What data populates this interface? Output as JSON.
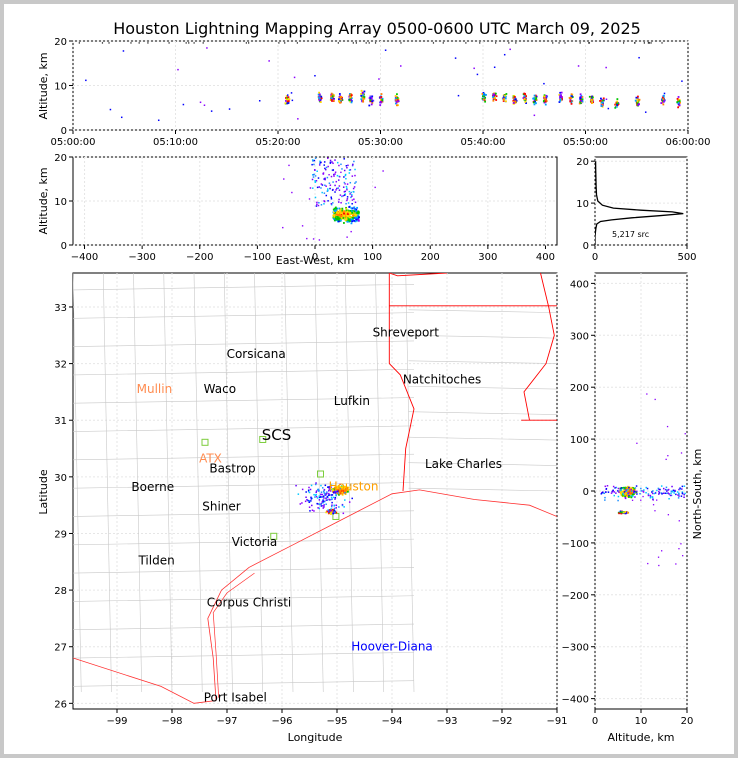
{
  "title": "Houston Lightning Mapping Array 0500-0600 UTC March 09, 2025",
  "colors": {
    "background": "#ffffff",
    "frame": "#c8c8c8",
    "borders": "#ff0000",
    "counties": "#b8b8b8",
    "grid": "#e6e6e6"
  },
  "source_count_label": "5,217 src",
  "chart_data": [
    {
      "id": "time-altitude",
      "type": "scatter",
      "xlabel": "",
      "ylabel": "Altitude, km",
      "xticks": [
        "05:00:00",
        "05:10:00",
        "05:20:00",
        "05:30:00",
        "05:40:00",
        "05:50:00",
        "06:00:00"
      ],
      "xlim_minutes": [
        0,
        60
      ],
      "ylim": [
        0,
        20
      ],
      "yticks": [
        0,
        10,
        20
      ],
      "clusters_minutes": [
        [
          20.8,
          7
        ],
        [
          24,
          7.5
        ],
        [
          25.2,
          7.5
        ],
        [
          26,
          7
        ],
        [
          27,
          7.5
        ],
        [
          28.2,
          7.5
        ],
        [
          29,
          7
        ],
        [
          30,
          7
        ],
        [
          31.5,
          7
        ],
        [
          40,
          7.5
        ],
        [
          41,
          8
        ],
        [
          42,
          7.5
        ],
        [
          43,
          7
        ],
        [
          44,
          7.5
        ],
        [
          45,
          7
        ],
        [
          46,
          7
        ],
        [
          47.5,
          7.5
        ],
        [
          48.5,
          7
        ],
        [
          49.5,
          7
        ],
        [
          50.5,
          7
        ],
        [
          51.5,
          6.5
        ],
        [
          53,
          6
        ],
        [
          55,
          6.5
        ],
        [
          57.5,
          7
        ],
        [
          59,
          6.5
        ]
      ]
    },
    {
      "id": "ew-altitude",
      "type": "scatter",
      "xlabel": "East-West, km",
      "ylabel": "Altitude, km",
      "xlim": [
        -420,
        420
      ],
      "ylim": [
        0,
        20
      ],
      "xticks": [
        -400,
        -300,
        -200,
        -100,
        0,
        100,
        200,
        300,
        400
      ],
      "yticks": [
        0,
        10,
        20
      ],
      "core_center_km": [
        55,
        7
      ]
    },
    {
      "id": "altitude-histogram",
      "type": "line",
      "xlim": [
        0,
        500
      ],
      "ylim": [
        0,
        21
      ],
      "xticks": [
        0,
        500
      ],
      "yticks": [
        0,
        10,
        20
      ],
      "profile": [
        [
          0,
          0
        ],
        [
          0,
          2
        ],
        [
          2,
          3
        ],
        [
          5,
          4
        ],
        [
          10,
          5
        ],
        [
          30,
          5.6
        ],
        [
          90,
          6
        ],
        [
          200,
          6.5
        ],
        [
          350,
          7
        ],
        [
          480,
          7.5
        ],
        [
          420,
          7.9
        ],
        [
          250,
          8.3
        ],
        [
          100,
          8.8
        ],
        [
          40,
          9.5
        ],
        [
          15,
          10.5
        ],
        [
          8,
          12
        ],
        [
          6,
          14
        ],
        [
          5,
          16
        ],
        [
          4,
          18
        ],
        [
          3,
          20
        ]
      ]
    },
    {
      "id": "plan-view",
      "type": "scatter",
      "xlabel": "Longitude",
      "ylabel": "Latitude",
      "xlim": [
        -99.8,
        -91
      ],
      "ylim": [
        25.9,
        33.6
      ],
      "xticks": [
        -99,
        -98,
        -97,
        -96,
        -95,
        -94,
        -93,
        -92,
        -91
      ],
      "yticks": [
        26,
        27,
        28,
        29,
        30,
        31,
        32,
        33
      ],
      "cities": [
        {
          "name": "Shreveport",
          "lon": -93.75,
          "lat": 32.55,
          "color": "#000000"
        },
        {
          "name": "Corsicana",
          "lon": -96.47,
          "lat": 32.17,
          "color": "#000000"
        },
        {
          "name": "Natchitoches",
          "lon": -93.09,
          "lat": 31.72,
          "color": "#000000"
        },
        {
          "name": "Mullin",
          "lon": -98.32,
          "lat": 31.55,
          "color": "#ff8c50"
        },
        {
          "name": "Waco",
          "lon": -97.13,
          "lat": 31.55,
          "color": "#000000"
        },
        {
          "name": "Lufkin",
          "lon": -94.73,
          "lat": 31.34,
          "color": "#000000"
        },
        {
          "name": "SCS",
          "lon": -96.1,
          "lat": 30.72,
          "color": "#000000"
        },
        {
          "name": "ATX",
          "lon": -97.3,
          "lat": 30.32,
          "color": "#ff8c50"
        },
        {
          "name": "Lake Charles",
          "lon": -92.7,
          "lat": 30.23,
          "color": "#000000"
        },
        {
          "name": "Bastrop",
          "lon": -96.9,
          "lat": 30.15,
          "color": "#000000"
        },
        {
          "name": "Boerne",
          "lon": -98.35,
          "lat": 29.82,
          "color": "#000000"
        },
        {
          "name": "Houston",
          "lon": -94.7,
          "lat": 29.83,
          "color": "#ffa000"
        },
        {
          "name": "Shiner",
          "lon": -97.1,
          "lat": 29.48,
          "color": "#000000"
        },
        {
          "name": "Victoria",
          "lon": -96.5,
          "lat": 28.85,
          "color": "#000000"
        },
        {
          "name": "Tilden",
          "lon": -98.28,
          "lat": 28.52,
          "color": "#000000"
        },
        {
          "name": "Corpus Christi",
          "lon": -96.6,
          "lat": 27.78,
          "color": "#000000"
        },
        {
          "name": "Hoover-Diana",
          "lon": -94.0,
          "lat": 27.0,
          "color": "#0000ff"
        },
        {
          "name": "Port Isabel",
          "lon": -96.85,
          "lat": 26.1,
          "color": "#000000"
        }
      ],
      "stations": [
        [
          -97.4,
          30.61
        ],
        [
          -96.35,
          30.66
        ],
        [
          -95.3,
          30.05
        ],
        [
          -95.02,
          29.3
        ],
        [
          -96.15,
          28.95
        ]
      ],
      "core_center": [
        -94.95,
        29.78
      ]
    },
    {
      "id": "altitude-ns",
      "type": "scatter",
      "xlabel": "Altitude, km",
      "ylabel": "North-South, km",
      "xlim": [
        0,
        20
      ],
      "ylim": [
        -420,
        420
      ],
      "xticks": [
        0,
        10,
        20
      ],
      "yticks": [
        -400,
        -300,
        -200,
        -100,
        0,
        100,
        200,
        300,
        400
      ],
      "core_center": [
        7,
        0
      ]
    }
  ]
}
